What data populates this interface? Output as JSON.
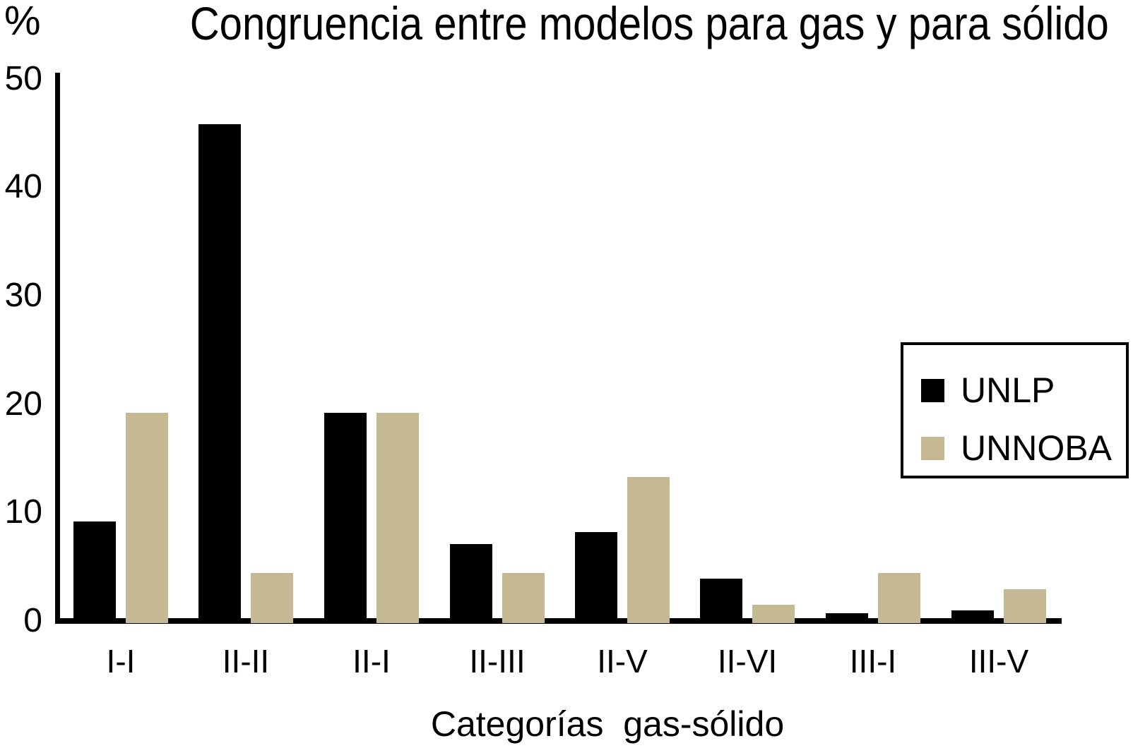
{
  "chart_data": {
    "type": "bar",
    "title": "Congruencia entre modelos para gas y para sólido",
    "xlabel": "Categorías  gas-sólido",
    "ylabel": "%",
    "ylim": [
      0,
      50
    ],
    "yticks": [
      0,
      10,
      20,
      30,
      40,
      50
    ],
    "grid": false,
    "legend_position": "right",
    "categories": [
      "I-I",
      "II-II",
      "II-I",
      "II-III",
      "II-V",
      "II-VI",
      "III-I",
      "III-V"
    ],
    "series": [
      {
        "name": "UNLP",
        "color": "#000000",
        "values": [
          9.2,
          45.8,
          19.2,
          7.1,
          8.2,
          3.9,
          0.7,
          1.0
        ]
      },
      {
        "name": "UNNOBA",
        "color": "#c4b993",
        "values": [
          19.2,
          4.4,
          19.2,
          4.4,
          13.3,
          1.5,
          4.4,
          2.9
        ]
      }
    ]
  },
  "legend": {
    "entries": [
      {
        "label": "UNLP",
        "color": "#000000"
      },
      {
        "label": "UNNOBA",
        "color": "#c4b993"
      }
    ]
  }
}
